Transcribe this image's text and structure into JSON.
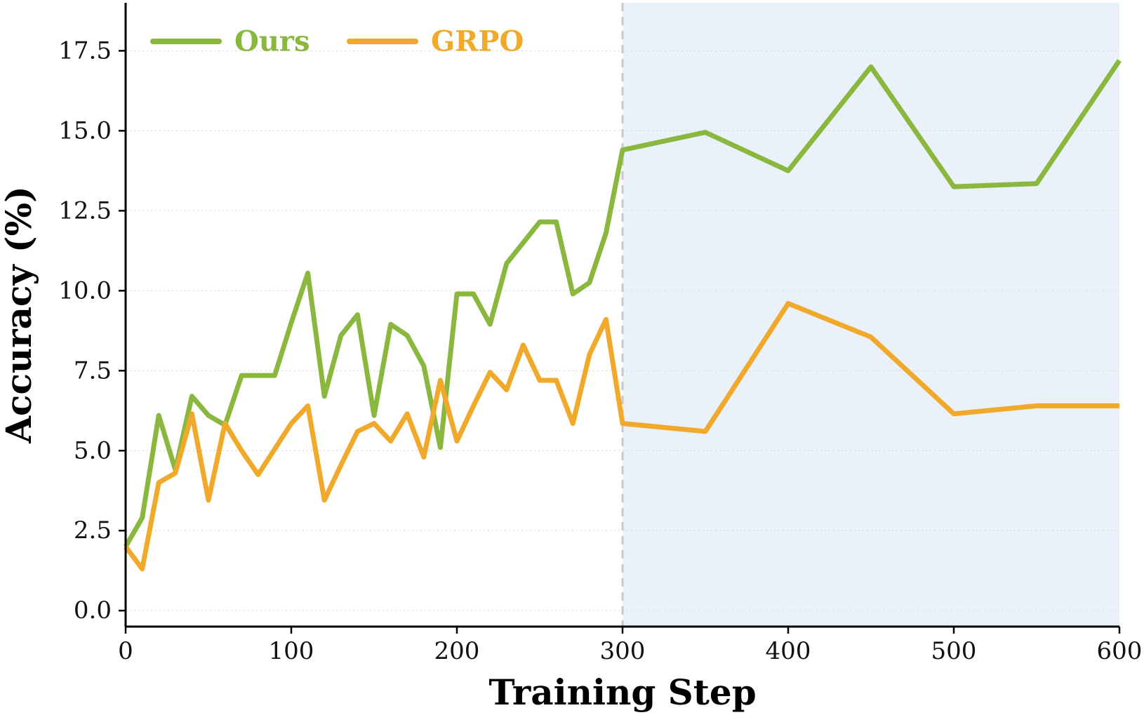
{
  "chart_data": {
    "type": "line",
    "xlabel": "Training Step",
    "ylabel": "Accuracy (%)",
    "xlim": [
      0,
      600
    ],
    "ylim": [
      -0.5,
      19.0
    ],
    "x_ticks": [
      0,
      100,
      200,
      300,
      400,
      500,
      600
    ],
    "y_ticks": [
      0.0,
      2.5,
      5.0,
      7.5,
      10.0,
      12.5,
      15.0,
      17.5
    ],
    "grid": "horizontal dotted",
    "legend_position": "top-left",
    "shaded_region": {
      "x_start": 300,
      "x_end": 600,
      "color": "#eaf1f9"
    },
    "vertical_line": {
      "x": 300,
      "style": "dashed",
      "color": "#c4c8d0"
    },
    "series": [
      {
        "name": "Ours",
        "color": "#8ab83f",
        "points": [
          [
            0,
            2.0
          ],
          [
            10,
            2.9
          ],
          [
            20,
            6.1
          ],
          [
            30,
            4.4
          ],
          [
            40,
            6.7
          ],
          [
            50,
            6.1
          ],
          [
            60,
            5.8
          ],
          [
            70,
            7.35
          ],
          [
            80,
            7.35
          ],
          [
            90,
            7.35
          ],
          [
            100,
            9.0
          ],
          [
            110,
            10.55
          ],
          [
            120,
            6.7
          ],
          [
            130,
            8.6
          ],
          [
            140,
            9.25
          ],
          [
            150,
            6.1
          ],
          [
            160,
            8.95
          ],
          [
            170,
            8.6
          ],
          [
            180,
            7.65
          ],
          [
            190,
            5.1
          ],
          [
            200,
            9.9
          ],
          [
            210,
            9.9
          ],
          [
            220,
            8.95
          ],
          [
            230,
            10.85
          ],
          [
            240,
            11.5
          ],
          [
            250,
            12.15
          ],
          [
            260,
            12.15
          ],
          [
            270,
            9.9
          ],
          [
            280,
            10.25
          ],
          [
            290,
            11.8
          ],
          [
            300,
            14.4
          ],
          [
            350,
            14.95
          ],
          [
            400,
            13.75
          ],
          [
            450,
            17.0
          ],
          [
            500,
            13.25
          ],
          [
            550,
            13.35
          ],
          [
            600,
            17.2
          ]
        ]
      },
      {
        "name": "GRPO",
        "color": "#f0a92a",
        "points": [
          [
            0,
            2.0
          ],
          [
            10,
            1.3
          ],
          [
            20,
            4.0
          ],
          [
            30,
            4.3
          ],
          [
            40,
            6.15
          ],
          [
            50,
            3.45
          ],
          [
            60,
            5.85
          ],
          [
            70,
            5.0
          ],
          [
            80,
            4.25
          ],
          [
            90,
            5.05
          ],
          [
            100,
            5.85
          ],
          [
            110,
            6.4
          ],
          [
            120,
            3.45
          ],
          [
            130,
            4.55
          ],
          [
            140,
            5.6
          ],
          [
            150,
            5.85
          ],
          [
            160,
            5.3
          ],
          [
            170,
            6.15
          ],
          [
            180,
            4.8
          ],
          [
            190,
            7.2
          ],
          [
            200,
            5.3
          ],
          [
            210,
            6.4
          ],
          [
            220,
            7.45
          ],
          [
            230,
            6.9
          ],
          [
            240,
            8.3
          ],
          [
            250,
            7.2
          ],
          [
            260,
            7.2
          ],
          [
            270,
            5.85
          ],
          [
            280,
            8.0
          ],
          [
            290,
            9.1
          ],
          [
            300,
            5.85
          ],
          [
            350,
            5.6
          ],
          [
            400,
            9.6
          ],
          [
            450,
            8.55
          ],
          [
            500,
            6.15
          ],
          [
            550,
            6.4
          ],
          [
            600,
            6.4
          ]
        ]
      }
    ]
  }
}
